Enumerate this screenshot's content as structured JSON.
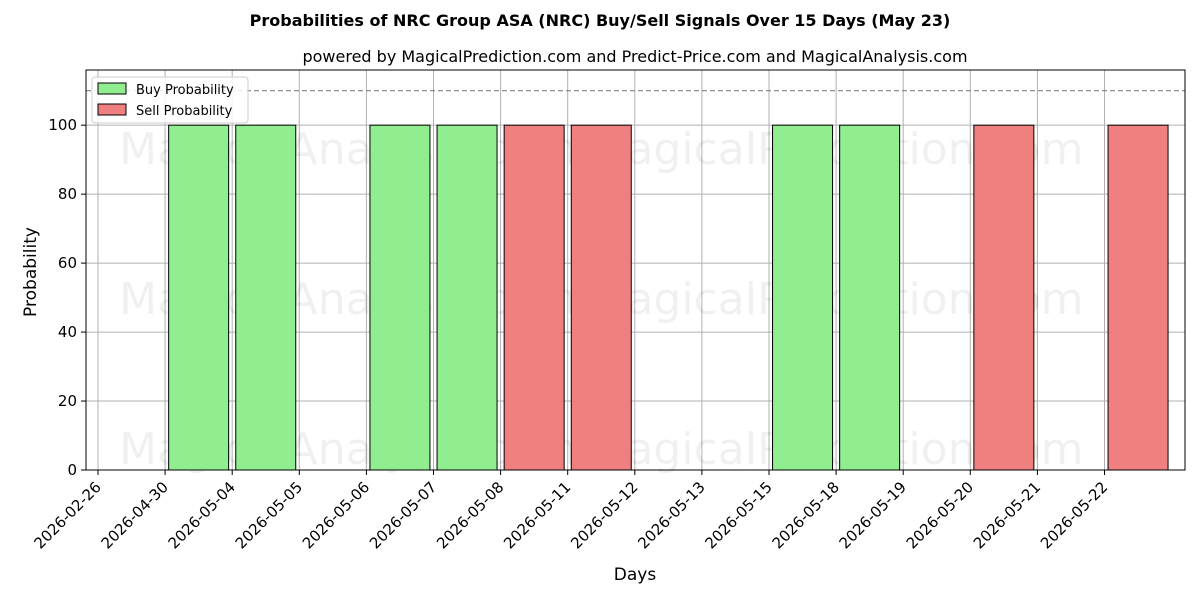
{
  "chart_data": {
    "type": "bar",
    "title": "Probabilities of NRC Group ASA (NRC) Buy/Sell Signals Over 15 Days (May 23)",
    "subtitle": "powered by MagicalPrediction.com and Predict-Price.com and MagicalAnalysis.com",
    "xlabel": "Days",
    "ylabel": "Probability",
    "ylim": [
      0,
      116
    ],
    "yticks": [
      0,
      20,
      40,
      60,
      80,
      100
    ],
    "threshold": 110,
    "grid": true,
    "legend_position": "top-left",
    "categories": [
      "2026-02-26",
      "2026-04-30",
      "2026-05-04",
      "2026-05-05",
      "2026-05-06",
      "2026-05-07",
      "2026-05-08",
      "2026-05-11",
      "2026-05-12",
      "2026-05-13",
      "2026-05-15",
      "2026-05-18",
      "2026-05-19",
      "2026-05-20",
      "2026-05-21",
      "2026-05-22"
    ],
    "series": [
      {
        "name": "Buy Probability",
        "color": "#90ee90",
        "bars": [
          {
            "x": "2026-04-30",
            "value": 100
          },
          {
            "x": "2026-05-04",
            "value": 100
          },
          {
            "x": "2026-05-06",
            "value": 100
          },
          {
            "x": "2026-05-07",
            "value": 100
          },
          {
            "x": "2026-05-15",
            "value": 100
          },
          {
            "x": "2026-05-18",
            "value": 100
          }
        ]
      },
      {
        "name": "Sell Probability",
        "color": "#f08080",
        "bars": [
          {
            "x": "2026-05-08",
            "value": 100
          },
          {
            "x": "2026-05-11",
            "value": 100
          },
          {
            "x": "2026-05-20",
            "value": 100
          },
          {
            "x": "2026-05-22",
            "value": 100
          }
        ]
      }
    ],
    "watermarks": [
      "MagicalAnalysis.com",
      "MagicalPrediction.com"
    ]
  }
}
